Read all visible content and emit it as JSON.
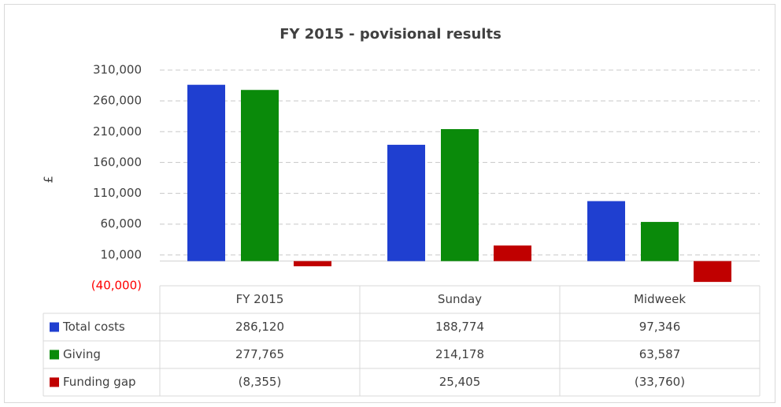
{
  "chart_data": {
    "type": "bar",
    "title": "FY 2015 - povisional results",
    "y_label": "£",
    "categories": [
      "FY 2015",
      "Sunday",
      "Midweek"
    ],
    "series": [
      {
        "name": "Total costs",
        "color": "#1f3fd0",
        "values": [
          286120,
          188774,
          97346
        ],
        "value_labels": [
          "286,120",
          "188,774",
          "97,346"
        ]
      },
      {
        "name": "Giving",
        "color": "#0a8a0a",
        "values": [
          277765,
          214178,
          63587
        ],
        "value_labels": [
          "277,765",
          "214,178",
          "63,587"
        ]
      },
      {
        "name": "Funding gap",
        "color": "#c00000",
        "values": [
          -8355,
          25405,
          -33760
        ],
        "value_labels": [
          "(8,355)",
          "25,405",
          "(33,760)"
        ]
      }
    ],
    "ylim": [
      -40000,
      310000
    ],
    "yticks": [
      {
        "value": -40000,
        "label": "(40,000)"
      },
      {
        "value": 10000,
        "label": "10,000"
      },
      {
        "value": 60000,
        "label": "60,000"
      },
      {
        "value": 110000,
        "label": "110,000"
      },
      {
        "value": 160000,
        "label": "160,000"
      },
      {
        "value": 210000,
        "label": "210,000"
      },
      {
        "value": 260000,
        "label": "260,000"
      },
      {
        "value": 310000,
        "label": "310,000"
      }
    ],
    "negative_tick_color": "#ff0000",
    "grid": true,
    "data_table": true
  }
}
